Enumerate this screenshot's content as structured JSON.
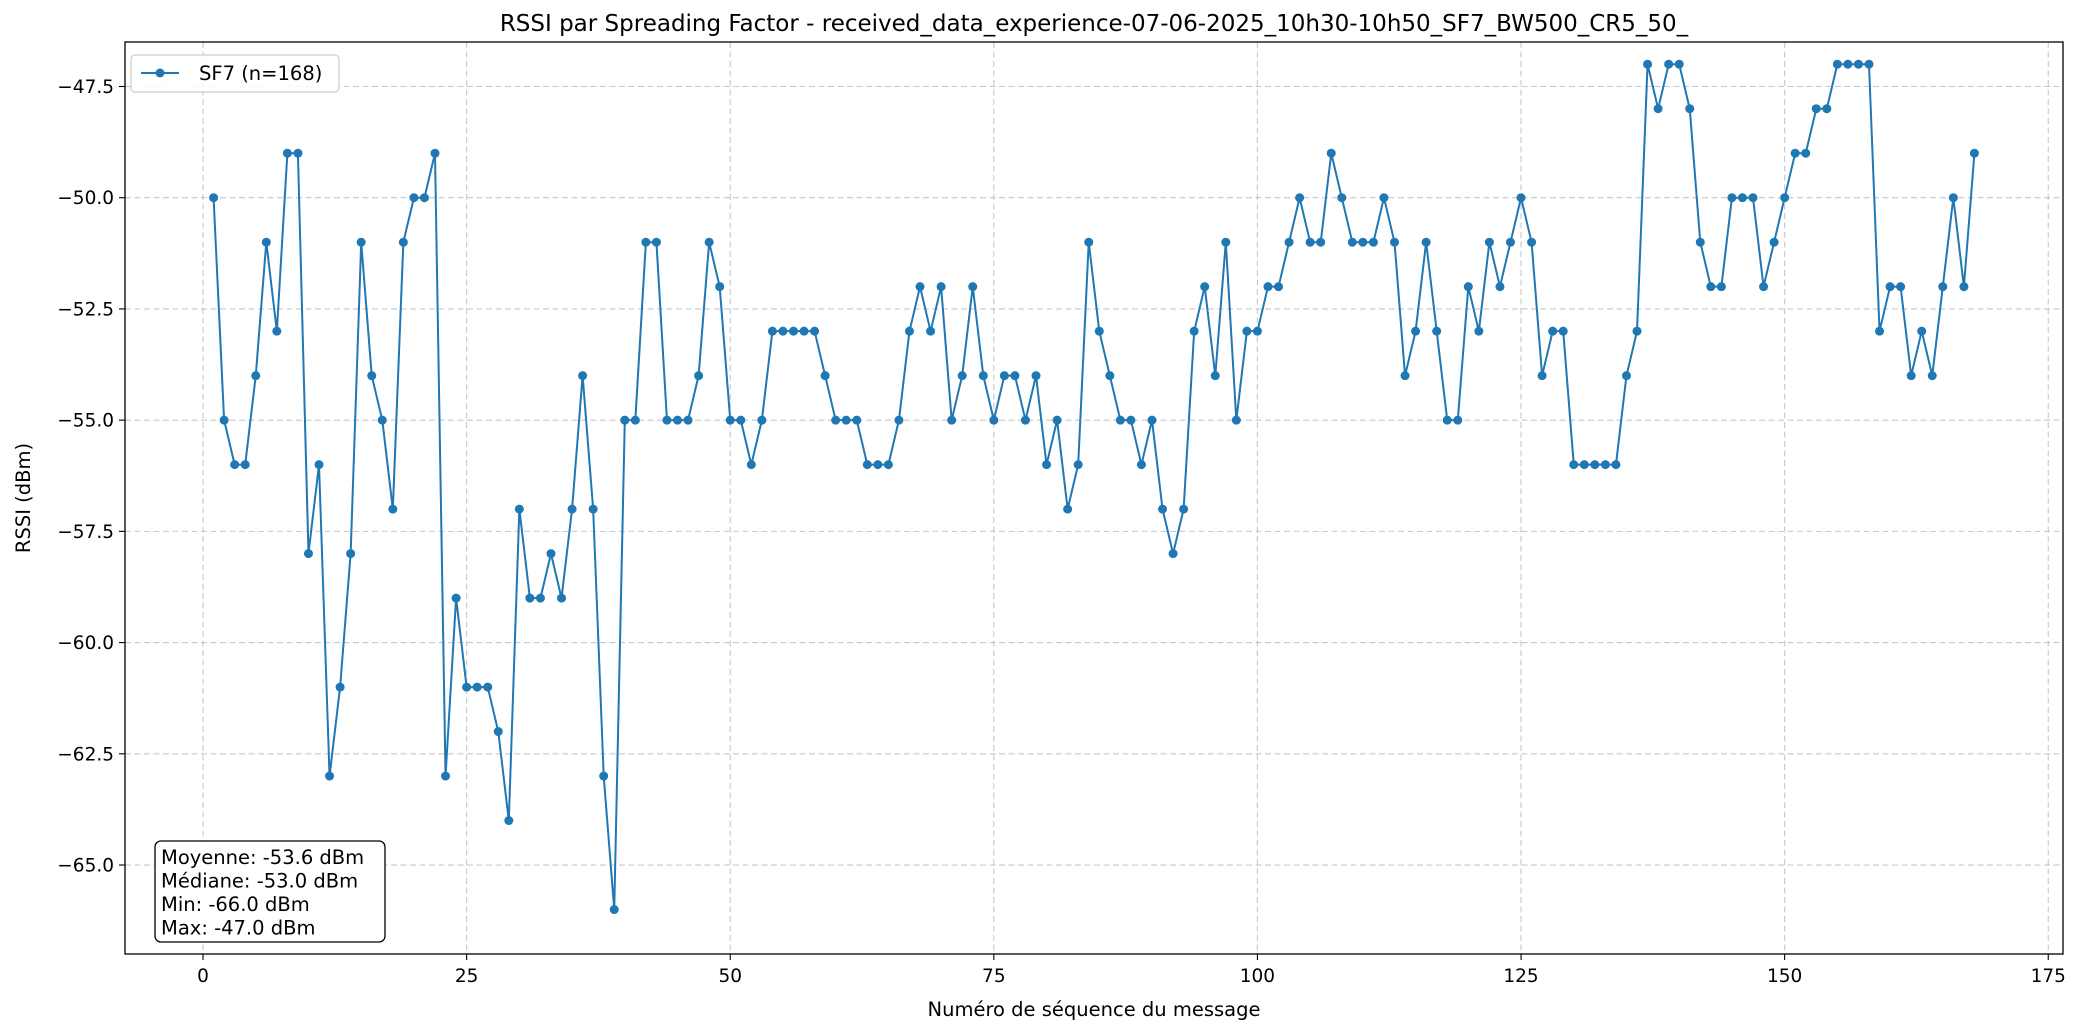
{
  "chart_data": {
    "type": "line",
    "title": "RSSI par Spreading Factor - received_data_experience-07-06-2025_10h30-10h50_SF7_BW500_CR5_50_",
    "xlabel": "Numéro de séquence du message",
    "ylabel": "RSSI (dBm)",
    "xlim": [
      -7.4,
      176.4
    ],
    "ylim": [
      -67.0,
      -46.5
    ],
    "xticks": [
      0,
      25,
      50,
      75,
      100,
      125,
      150,
      175
    ],
    "xtick_labels": [
      "0",
      "25",
      "50",
      "75",
      "100",
      "125",
      "150",
      "175"
    ],
    "yticks": [
      -65.0,
      -62.5,
      -60.0,
      -57.5,
      -55.0,
      -52.5,
      -50.0,
      -47.5
    ],
    "ytick_labels": [
      "−65.0",
      "−62.5",
      "−60.0",
      "−57.5",
      "−55.0",
      "−52.5",
      "−50.0",
      "−47.5"
    ],
    "grid": true,
    "legend_position": "top-left",
    "series": [
      {
        "name": "SF7 (n=168)",
        "color": "#1f77b4",
        "marker": "circle",
        "x": [
          1,
          2,
          3,
          4,
          5,
          6,
          7,
          8,
          9,
          10,
          11,
          12,
          13,
          14,
          15,
          16,
          17,
          18,
          19,
          20,
          21,
          22,
          23,
          24,
          25,
          26,
          27,
          28,
          29,
          30,
          31,
          32,
          33,
          34,
          35,
          36,
          37,
          38,
          39,
          40,
          41,
          42,
          43,
          44,
          45,
          46,
          47,
          48,
          49,
          50,
          51,
          52,
          53,
          54,
          55,
          56,
          57,
          58,
          59,
          60,
          61,
          62,
          63,
          64,
          65,
          66,
          67,
          68,
          69,
          70,
          71,
          72,
          73,
          74,
          75,
          76,
          77,
          78,
          79,
          80,
          81,
          82,
          83,
          84,
          85,
          86,
          87,
          88,
          89,
          90,
          91,
          92,
          93,
          94,
          95,
          96,
          97,
          98,
          99,
          100,
          101,
          102,
          103,
          104,
          105,
          106,
          107,
          108,
          109,
          110,
          111,
          112,
          113,
          114,
          115,
          116,
          117,
          118,
          119,
          120,
          121,
          122,
          123,
          124,
          125,
          126,
          127,
          128,
          129,
          130,
          131,
          132,
          133,
          134,
          135,
          136,
          137,
          138,
          139,
          140,
          141,
          142,
          143,
          144,
          145,
          146,
          147,
          148,
          149,
          150,
          151,
          152,
          153,
          154,
          155,
          156,
          157,
          158,
          159,
          160,
          161,
          162,
          163,
          164,
          165,
          166,
          167,
          168
        ],
        "y": [
          -50,
          -55,
          -56,
          -56,
          -54,
          -51,
          -53,
          -49,
          -49,
          -58,
          -56,
          -63,
          -61,
          -58,
          -51,
          -54,
          -55,
          -57,
          -51,
          -50,
          -50,
          -49,
          -63,
          -59,
          -61,
          -61,
          -61,
          -62,
          -64,
          -57,
          -59,
          -59,
          -58,
          -59,
          -57,
          -54,
          -57,
          -63,
          -66,
          -55,
          -55,
          -51,
          -51,
          -55,
          -55,
          -55,
          -54,
          -51,
          -52,
          -55,
          -55,
          -56,
          -55,
          -53,
          -53,
          -53,
          -53,
          -53,
          -54,
          -55,
          -55,
          -55,
          -56,
          -56,
          -56,
          -55,
          -53,
          -52,
          -53,
          -52,
          -55,
          -54,
          -52,
          -54,
          -55,
          -54,
          -54,
          -55,
          -54,
          -56,
          -55,
          -57,
          -56,
          -51,
          -53,
          -54,
          -55,
          -55,
          -56,
          -55,
          -57,
          -58,
          -57,
          -53,
          -52,
          -54,
          -51,
          -55,
          -53,
          -53,
          -52,
          -52,
          -51,
          -50,
          -51,
          -51,
          -49,
          -50,
          -51,
          -51,
          -51,
          -50,
          -51,
          -54,
          -53,
          -51,
          -53,
          -55,
          -55,
          -52,
          -53,
          -51,
          -52,
          -51,
          -50,
          -51,
          -54,
          -53,
          -53,
          -56,
          -56,
          -56,
          -56,
          -56,
          -54,
          -53,
          -47,
          -48,
          -47,
          -47,
          -48,
          -51,
          -52,
          -52,
          -50,
          -50,
          -50,
          -52,
          -51,
          -50,
          -49,
          -49,
          -48,
          -48,
          -47,
          -47,
          -47,
          -47,
          -53,
          -52,
          -52,
          -54,
          -53,
          -54,
          -52,
          -50,
          -52,
          -49
        ]
      }
    ],
    "annotation_lines": [
      "Moyenne: -53.6 dBm",
      "Médiane: -53.0 dBm",
      "Min: -66.0 dBm",
      "Max: -47.0 dBm"
    ]
  }
}
